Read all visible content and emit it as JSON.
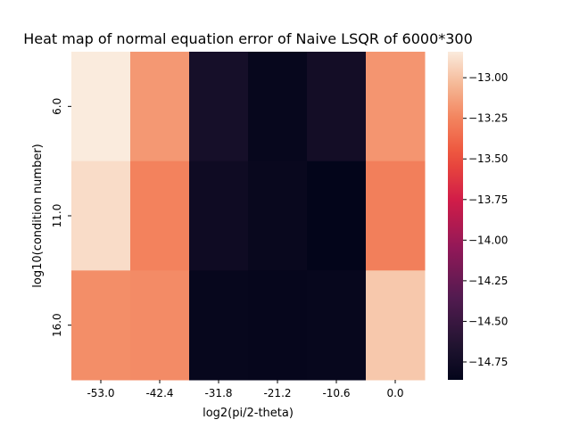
{
  "chart_data": {
    "type": "heatmap",
    "title": "Heat map of normal equation error of Naive LSQR of 6000*300",
    "xlabel": "log2(pi/2-theta)",
    "ylabel": "log10(condition number)",
    "x_categories": [
      "-53.0",
      "-42.4",
      "-31.8",
      "-21.2",
      "-10.6",
      "0.0"
    ],
    "y_categories": [
      "6.0",
      "11.0",
      "16.0"
    ],
    "values": [
      [
        -12.84,
        -13.17,
        -14.72,
        -14.83,
        -14.74,
        -13.18
      ],
      [
        -12.9,
        -13.26,
        -14.77,
        -14.82,
        -14.86,
        -13.27
      ],
      [
        -13.21,
        -13.22,
        -14.83,
        -14.84,
        -14.83,
        -12.98
      ]
    ],
    "colorbar": {
      "range": [
        -14.86,
        -12.84
      ],
      "ticks": [
        "-13.00",
        "-13.25",
        "-13.50",
        "-13.75",
        "-14.00",
        "-14.25",
        "-14.50",
        "-14.75"
      ],
      "tick_values": [
        -13.0,
        -13.25,
        -13.5,
        -13.75,
        -14.0,
        -14.25,
        -14.5,
        -14.75
      ]
    },
    "colormap": "rocket",
    "grid": false
  }
}
